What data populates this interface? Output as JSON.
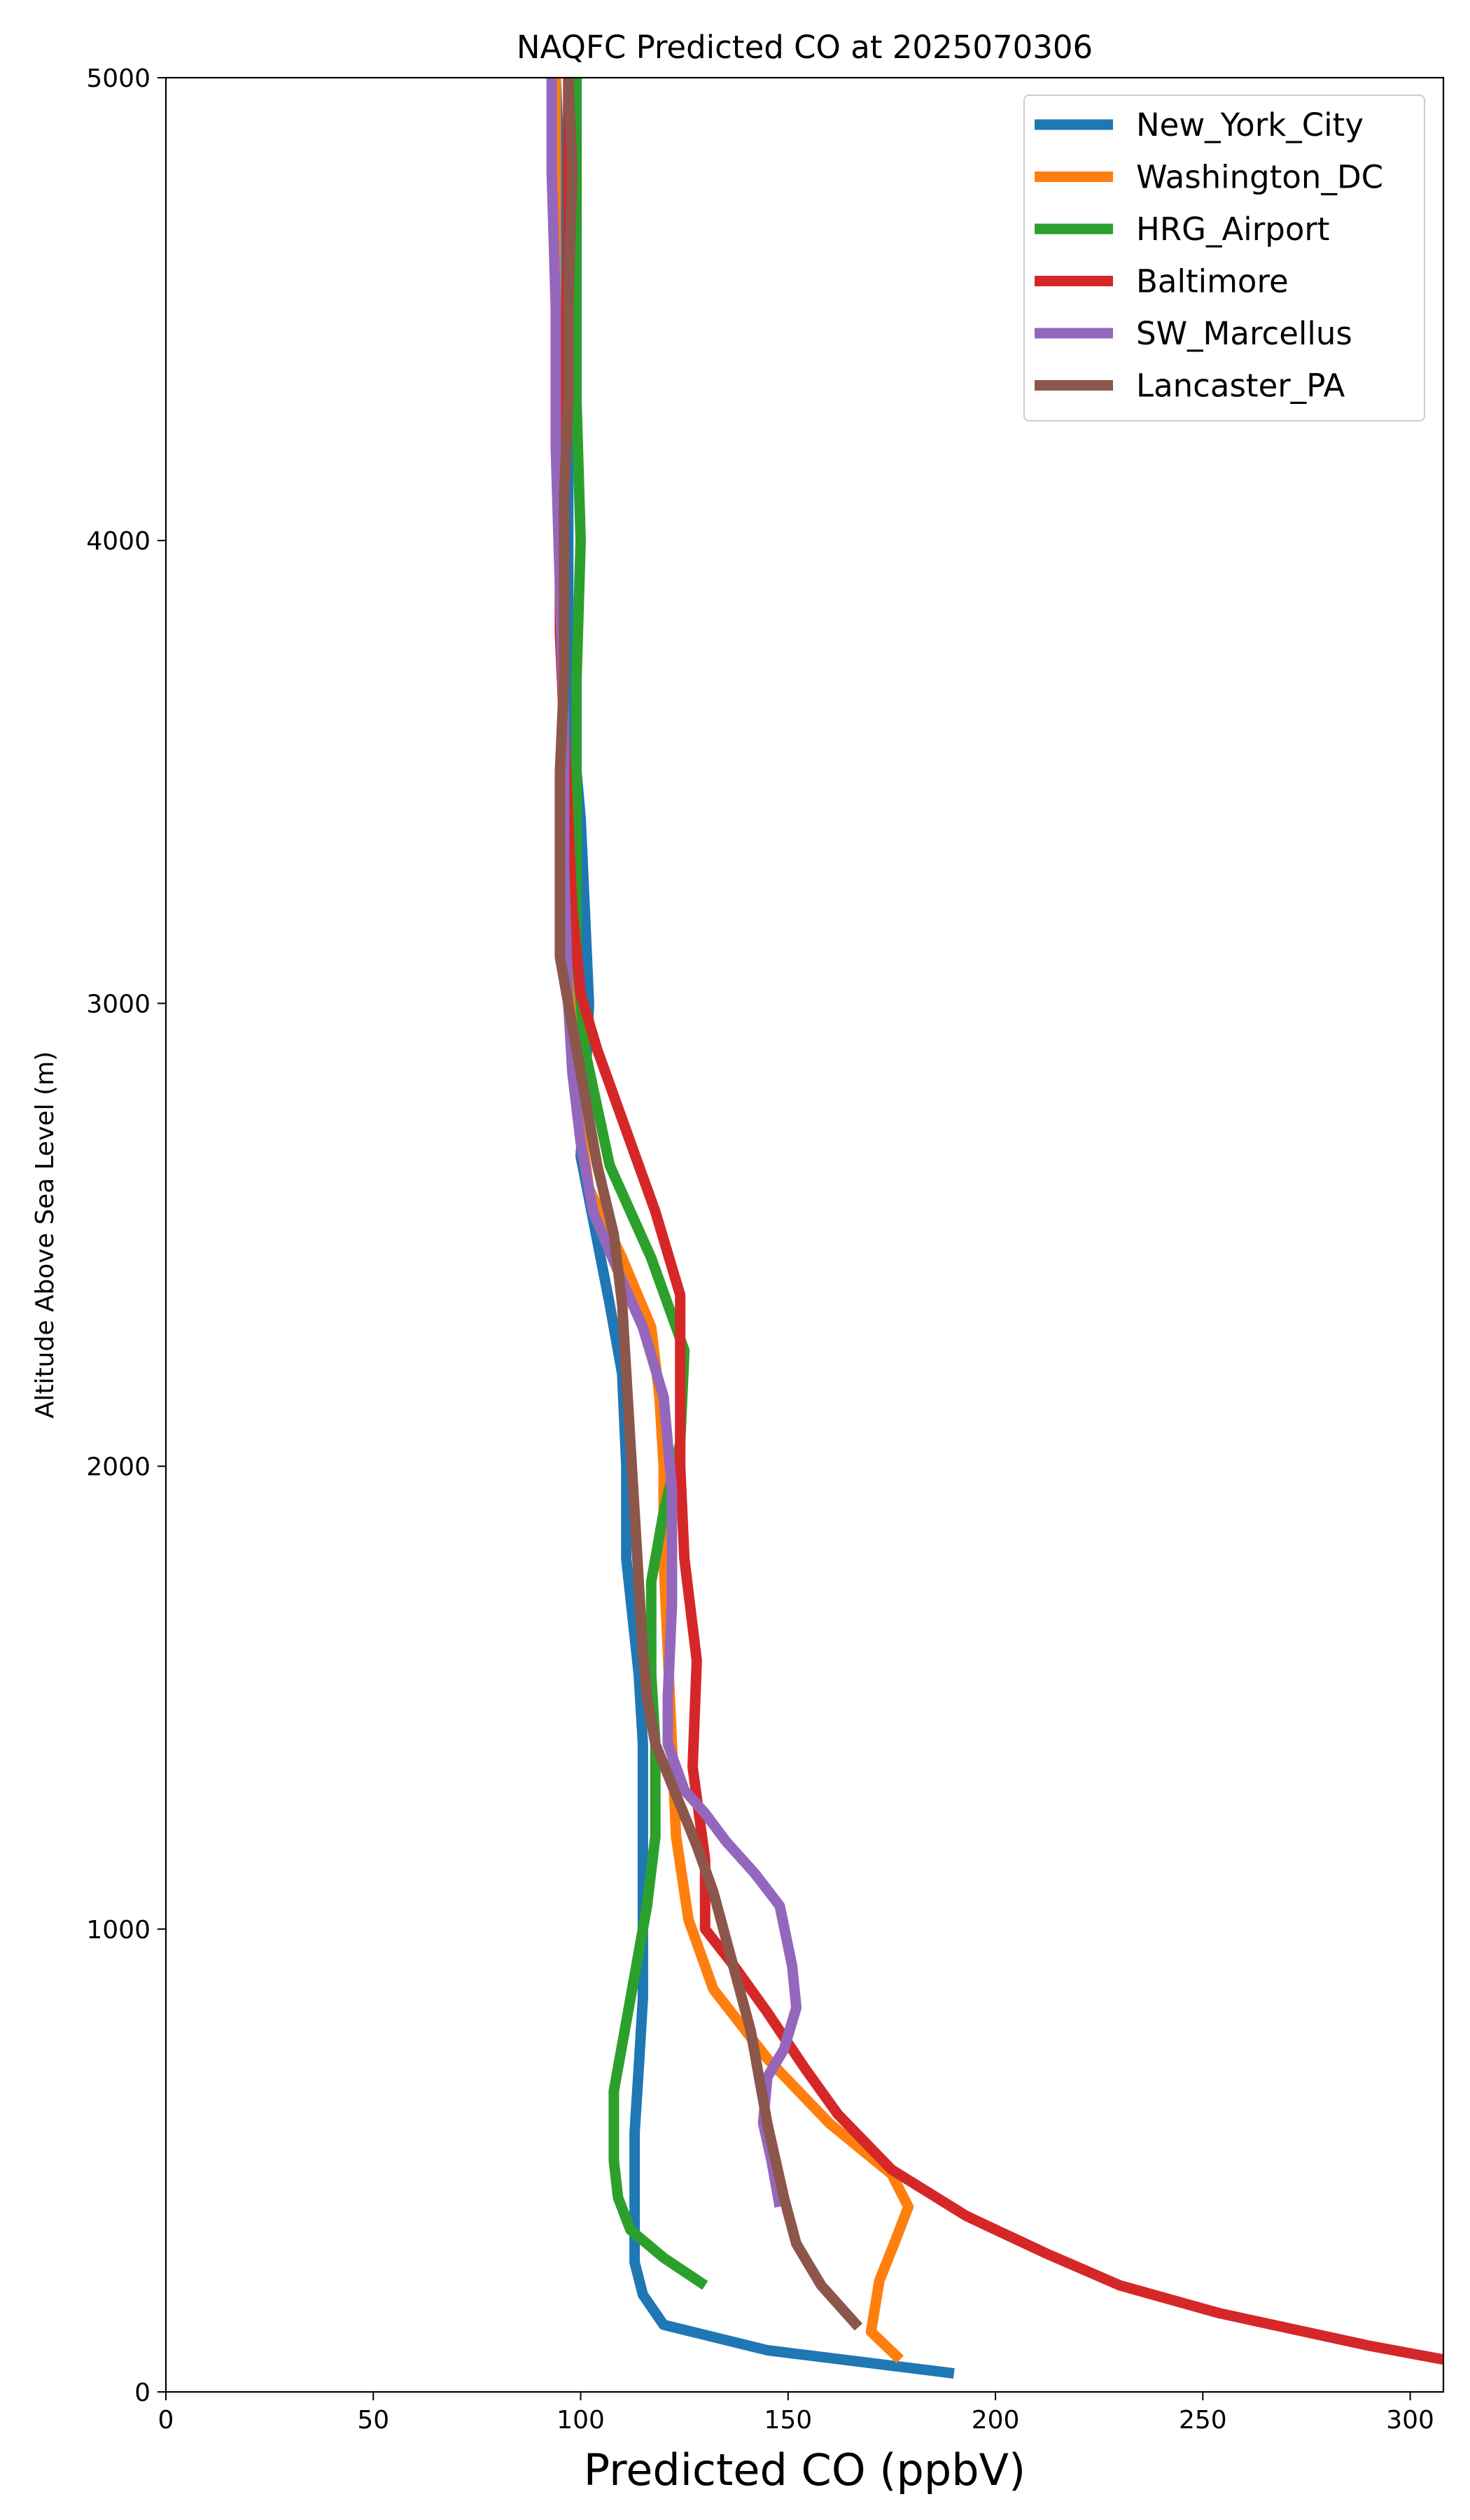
{
  "chart_data": {
    "type": "line",
    "title": "NAQFC Predicted CO at 2025070306",
    "xlabel": "Predicted CO (ppbV)",
    "ylabel": "Altitude Above Sea Level (m)",
    "xlim": [
      0,
      308
    ],
    "ylim": [
      0,
      5000
    ],
    "xticks": [
      "0",
      "50",
      "100",
      "150",
      "200",
      "250",
      "300"
    ],
    "yticks": [
      "0",
      "1000",
      "2000",
      "3000",
      "4000",
      "5000"
    ],
    "grid": false,
    "legend_position": "top-right",
    "series": [
      {
        "name": "New_York_City",
        "color": "#1f77b4",
        "points": [
          [
            190,
            40
          ],
          [
            145,
            90
          ],
          [
            120,
            145
          ],
          [
            115,
            210
          ],
          [
            113,
            280
          ],
          [
            113,
            400
          ],
          [
            113,
            560
          ],
          [
            114,
            700
          ],
          [
            115,
            850
          ],
          [
            115,
            1000
          ],
          [
            115,
            1200
          ],
          [
            115,
            1400
          ],
          [
            114,
            1550
          ],
          [
            111,
            1800
          ],
          [
            111,
            2000
          ],
          [
            110,
            2200
          ],
          [
            107,
            2350
          ],
          [
            100,
            2670
          ],
          [
            101,
            2800
          ],
          [
            102,
            3000
          ],
          [
            101,
            3200
          ],
          [
            100,
            3400
          ],
          [
            98,
            3600
          ],
          [
            97,
            3800
          ],
          [
            97,
            4000
          ],
          [
            97,
            4200
          ],
          [
            96,
            4400
          ],
          [
            95,
            4600
          ],
          [
            95,
            4800
          ],
          [
            94,
            5000
          ]
        ]
      },
      {
        "name": "Washington_DC",
        "color": "#ff7f0e",
        "points": [
          [
            177,
            70
          ],
          [
            170,
            130
          ],
          [
            172,
            240
          ],
          [
            176,
            330
          ],
          [
            179,
            400
          ],
          [
            175,
            470
          ],
          [
            160,
            580
          ],
          [
            145,
            720
          ],
          [
            132,
            870
          ],
          [
            126,
            1020
          ],
          [
            123,
            1200
          ],
          [
            122,
            1400
          ],
          [
            121,
            1600
          ],
          [
            120,
            1800
          ],
          [
            120,
            2000
          ],
          [
            119,
            2150
          ],
          [
            117,
            2300
          ],
          [
            110,
            2450
          ],
          [
            102,
            2600
          ],
          [
            99,
            2800
          ],
          [
            98,
            3000
          ],
          [
            97,
            3200
          ],
          [
            96,
            3400
          ],
          [
            96,
            3600
          ],
          [
            95,
            3800
          ],
          [
            95,
            4000
          ],
          [
            95,
            4200
          ],
          [
            94,
            4400
          ],
          [
            94,
            4600
          ],
          [
            94,
            4800
          ],
          [
            94,
            5000
          ]
        ]
      },
      {
        "name": "HRG_Airport",
        "color": "#2ca02c",
        "points": [
          [
            130,
            230
          ],
          [
            120,
            290
          ],
          [
            112,
            350
          ],
          [
            109,
            420
          ],
          [
            108,
            500
          ],
          [
            108,
            650
          ],
          [
            110,
            750
          ],
          [
            113,
            900
          ],
          [
            116,
            1050
          ],
          [
            118,
            1200
          ],
          [
            118,
            1400
          ],
          [
            117,
            1550
          ],
          [
            117,
            1750
          ],
          [
            120,
            1900
          ],
          [
            124,
            2050
          ],
          [
            125,
            2250
          ],
          [
            117,
            2450
          ],
          [
            107,
            2650
          ],
          [
            101,
            2900
          ],
          [
            99,
            3100
          ],
          [
            99,
            3400
          ],
          [
            99,
            3700
          ],
          [
            100,
            4000
          ],
          [
            99,
            4300
          ],
          [
            99,
            4600
          ],
          [
            99,
            5000
          ]
        ]
      },
      {
        "name": "Baltimore",
        "color": "#d62728",
        "points": [
          [
            308,
            70
          ],
          [
            290,
            100
          ],
          [
            254,
            170
          ],
          [
            230,
            230
          ],
          [
            212,
            300
          ],
          [
            193,
            380
          ],
          [
            175,
            480
          ],
          [
            162,
            600
          ],
          [
            154,
            700
          ],
          [
            145,
            820
          ],
          [
            137,
            920
          ],
          [
            130,
            1000
          ],
          [
            130,
            1150
          ],
          [
            127,
            1350
          ],
          [
            128,
            1580
          ],
          [
            125,
            1800
          ],
          [
            124,
            2000
          ],
          [
            124,
            2200
          ],
          [
            124,
            2370
          ],
          [
            118,
            2550
          ],
          [
            112,
            2700
          ],
          [
            104,
            2900
          ],
          [
            100,
            3020
          ],
          [
            98,
            3200
          ],
          [
            97,
            3400
          ],
          [
            96,
            3600
          ],
          [
            95,
            3800
          ],
          [
            95,
            4000
          ],
          [
            96,
            4200
          ],
          [
            96,
            4400
          ],
          [
            97,
            4600
          ],
          [
            97,
            4800
          ],
          [
            97,
            5000
          ]
        ]
      },
      {
        "name": "SW_Marcellus",
        "color": "#9467bd",
        "points": [
          [
            148,
            400
          ],
          [
            146,
            500
          ],
          [
            144,
            580
          ],
          [
            145,
            680
          ],
          [
            149,
            740
          ],
          [
            152,
            830
          ],
          [
            151,
            920
          ],
          [
            148,
            1050
          ],
          [
            142,
            1120
          ],
          [
            135,
            1190
          ],
          [
            130,
            1250
          ],
          [
            125,
            1300
          ],
          [
            121,
            1400
          ],
          [
            121,
            1500
          ],
          [
            122,
            1700
          ],
          [
            122,
            1950
          ],
          [
            121,
            2050
          ],
          [
            120,
            2150
          ],
          [
            115,
            2300
          ],
          [
            110,
            2400
          ],
          [
            103,
            2550
          ],
          [
            100,
            2700
          ],
          [
            98,
            2850
          ],
          [
            97,
            3000
          ],
          [
            96,
            3300
          ],
          [
            96,
            3600
          ],
          [
            95,
            3900
          ],
          [
            94,
            4200
          ],
          [
            94,
            4500
          ],
          [
            93,
            4800
          ],
          [
            93,
            5000
          ]
        ]
      },
      {
        "name": "Lancaster_PA",
        "color": "#8c564b",
        "points": [
          [
            167,
            140
          ],
          [
            158,
            230
          ],
          [
            152,
            320
          ],
          [
            149,
            420
          ],
          [
            147,
            500
          ],
          [
            145,
            580
          ],
          [
            143,
            680
          ],
          [
            141,
            780
          ],
          [
            138,
            880
          ],
          [
            135,
            980
          ],
          [
            132,
            1080
          ],
          [
            128,
            1180
          ],
          [
            123,
            1290
          ],
          [
            118,
            1400
          ],
          [
            116,
            1500
          ],
          [
            115,
            1600
          ],
          [
            114,
            1750
          ],
          [
            113,
            1900
          ],
          [
            112,
            2050
          ],
          [
            111,
            2200
          ],
          [
            110,
            2350
          ],
          [
            108,
            2500
          ],
          [
            104,
            2650
          ],
          [
            101,
            2800
          ],
          [
            98,
            2950
          ],
          [
            95,
            3100
          ],
          [
            95,
            3300
          ],
          [
            95,
            3500
          ],
          [
            96,
            3700
          ],
          [
            96,
            3900
          ],
          [
            96,
            4100
          ],
          [
            97,
            4300
          ],
          [
            97,
            4500
          ],
          [
            98,
            4800
          ],
          [
            97,
            5000
          ]
        ]
      }
    ]
  }
}
